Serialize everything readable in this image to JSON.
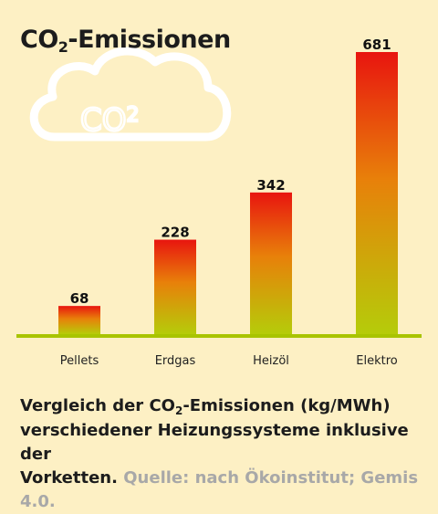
{
  "title_prefix": "CO",
  "title_sub": "2",
  "title_suffix": "-Emissionen",
  "cloud_label_main": "CO",
  "cloud_label_sub": "2",
  "caption": {
    "line1_prefix": "Vergleich der CO",
    "line1_sub": "2",
    "line1_suffix": "-Emissionen (kg/MWh)",
    "line2": "verschiedener Heizungssysteme inklusive der",
    "line3": "Vorketten.",
    "source": "Quelle: nach Ökoinstitut; Gemis 4.0."
  },
  "colors": {
    "background": "#fdf0c4",
    "bar_top": "#e8150f",
    "bar_mid": "#e8800a",
    "bar_bottom": "#b5cc0a",
    "baseline": "#a9c400",
    "cloud": "#ffffff"
  },
  "chart_data": {
    "type": "bar",
    "categories": [
      "Pellets",
      "Erdgas",
      "Heizöl",
      "Elektro"
    ],
    "values": [
      68,
      228,
      342,
      681
    ],
    "title": "CO2-Emissionen",
    "xlabel": "",
    "ylabel": "",
    "ylim": [
      0,
      681
    ],
    "grid": false,
    "data_labels": true
  }
}
